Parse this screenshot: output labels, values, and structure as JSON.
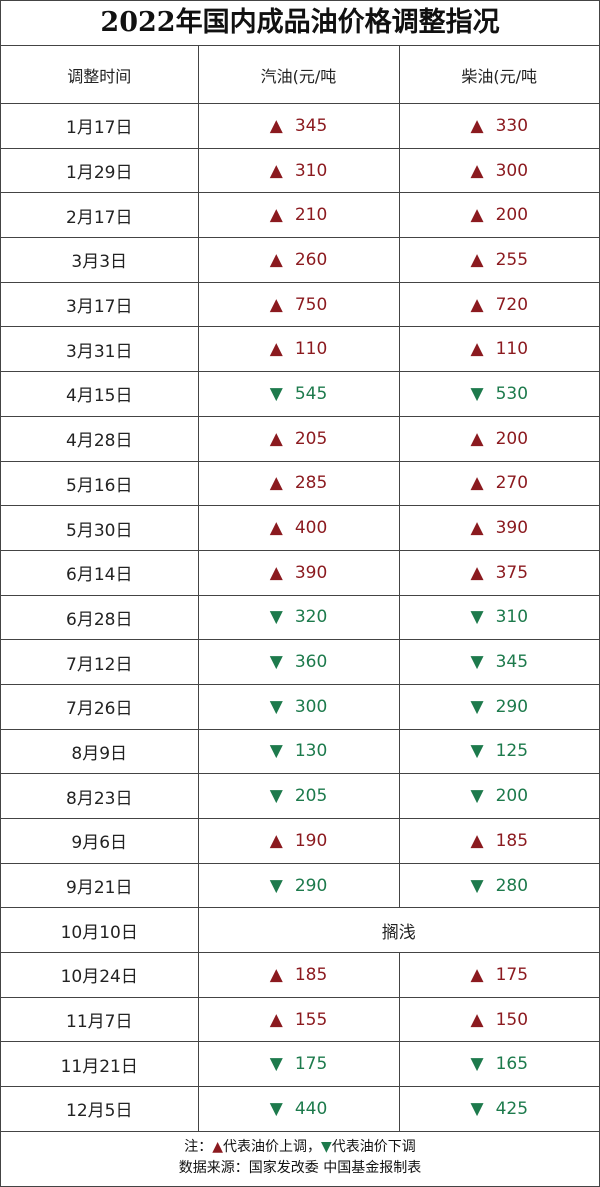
{
  "title": "2022年国内成品油价格调整指况",
  "header": [
    "调整时间",
    "汽油(元/吨",
    "柴油(元/吨"
  ],
  "rows": [
    {
      "date": "1月17日",
      "gasoline": {
        "arrow": "▲",
        "value": 345
      },
      "diesel": {
        "arrow": "▲",
        "value": 330
      }
    },
    {
      "date": "1月29日",
      "gasoline": {
        "arrow": "▲",
        "value": 310
      },
      "diesel": {
        "arrow": "▲",
        "value": 300
      }
    },
    {
      "date": "2月17日",
      "gasoline": {
        "arrow": "▲",
        "value": 210
      },
      "diesel": {
        "arrow": "▲",
        "value": 200
      }
    },
    {
      "date": "3月3日",
      "gasoline": {
        "arrow": "▲",
        "value": 260
      },
      "diesel": {
        "arrow": "▲",
        "value": 255
      }
    },
    {
      "date": "3月17日",
      "gasoline": {
        "arrow": "▲",
        "value": 750
      },
      "diesel": {
        "arrow": "▲",
        "value": 720
      }
    },
    {
      "date": "3月31日",
      "gasoline": {
        "arrow": "▲",
        "value": 110
      },
      "diesel": {
        "arrow": "▲",
        "value": 110
      }
    },
    {
      "date": "4月15日",
      "gasoline": {
        "arrow": "▼",
        "value": 545
      },
      "diesel": {
        "arrow": "▼",
        "value": 530
      }
    },
    {
      "date": "4月28日",
      "gasoline": {
        "arrow": "▲",
        "value": 205
      },
      "diesel": {
        "arrow": "▲",
        "value": 200
      }
    },
    {
      "date": "5月16日",
      "gasoline": {
        "arrow": "▲",
        "value": 285
      },
      "diesel": {
        "arrow": "▲",
        "value": 270
      }
    },
    {
      "date": "5月30日",
      "gasoline": {
        "arrow": "▲",
        "value": 400
      },
      "diesel": {
        "arrow": "▲",
        "value": 390
      }
    },
    {
      "date": "6月14日",
      "gasoline": {
        "arrow": "▲",
        "value": 390
      },
      "diesel": {
        "arrow": "▲",
        "value": 375
      }
    },
    {
      "date": "6月28日",
      "gasoline": {
        "arrow": "▼",
        "value": 320
      },
      "diesel": {
        "arrow": "▼",
        "value": 310
      }
    },
    {
      "date": "7月12日",
      "gasoline": {
        "arrow": "▼",
        "value": 360
      },
      "diesel": {
        "arrow": "▼",
        "value": 345
      }
    },
    {
      "date": "7月26日",
      "gasoline": {
        "arrow": "▼",
        "value": 300
      },
      "diesel": {
        "arrow": "▼",
        "value": 290
      }
    },
    {
      "date": "8月9日",
      "gasoline": {
        "arrow": "▼",
        "value": 130
      },
      "diesel": {
        "arrow": "▼",
        "value": 125
      }
    },
    {
      "date": "8月23日",
      "gasoline": {
        "arrow": "▼",
        "value": 205
      },
      "diesel": {
        "arrow": "▼",
        "value": 200
      }
    },
    {
      "date": "9月6日",
      "gasoline": {
        "arrow": "▲",
        "value": 190
      },
      "diesel": {
        "arrow": "▲",
        "value": 185
      }
    },
    {
      "date": "9月21日",
      "gasoline": {
        "arrow": "▼",
        "value": 290
      },
      "diesel": {
        "arrow": "▼",
        "value": 280
      }
    },
    {
      "date": "10月10日",
      "note": "搁浅"
    },
    {
      "date": "10月24日",
      "gasoline": {
        "arrow": "▲",
        "value": 185
      },
      "diesel": {
        "arrow": "▲",
        "value": 175
      }
    },
    {
      "date": "11月7日",
      "gasoline": {
        "arrow": "▲",
        "value": 155
      },
      "diesel": {
        "arrow": "▲",
        "value": 150
      }
    },
    {
      "date": "11月21日",
      "gasoline": {
        "arrow": "▼",
        "value": 175
      },
      "diesel": {
        "arrow": "▼",
        "value": 165
      }
    },
    {
      "date": "12月5日",
      "gasoline": {
        "arrow": "▼",
        "value": 440
      },
      "diesel": {
        "arrow": "▼",
        "value": 425
      }
    }
  ],
  "footer": {
    "note": [
      "注：",
      "▲",
      "代表油价上调，",
      "▼",
      "代表油价下调"
    ],
    "source": "数据来源：国家发改委  中国基金报制表"
  }
}
